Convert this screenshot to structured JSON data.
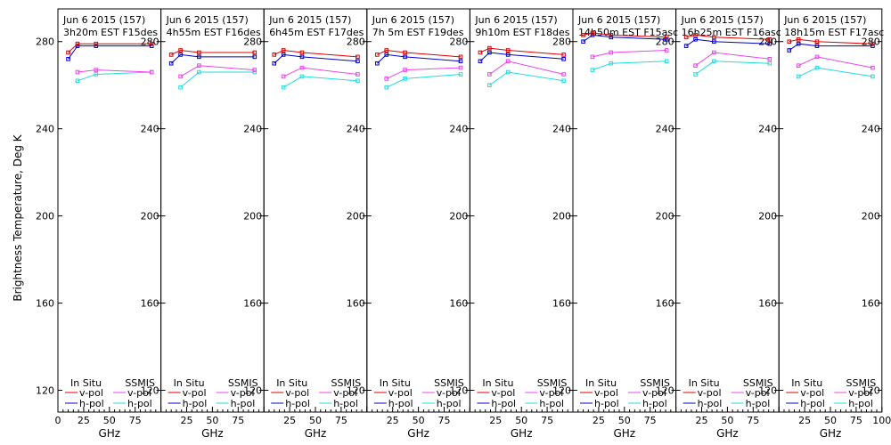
{
  "chart_data": {
    "type": "line",
    "ylabel": "Brightness Temperature, Deg K",
    "xlabel": "GHz",
    "ylim": [
      110,
      295
    ],
    "yticks": [
      120,
      160,
      200,
      240,
      280
    ],
    "x_tick_labels": [
      "0",
      "25",
      "50",
      "75",
      "100"
    ],
    "legend": {
      "insitu_title": "In Situ",
      "ssmis_title": "SSMIS",
      "vpol": "v-pol",
      "hpol": "h-pol"
    },
    "colors": {
      "insitu_v": "#dd0000",
      "insitu_h": "#0000cc",
      "ssmis_v": "#ee44ee",
      "ssmis_h": "#22dddd"
    },
    "panels": [
      {
        "date": "Jun 6 2015 (157)",
        "time": "3h20m EST F15des",
        "x_insitu": [
          10,
          19,
          37,
          91
        ],
        "insitu_v": [
          275,
          279,
          279,
          279
        ],
        "insitu_h": [
          272,
          278,
          278,
          278
        ],
        "x_ssmis": [
          19,
          37,
          91
        ],
        "ssmis_v": [
          266,
          267,
          266
        ],
        "ssmis_h": [
          262,
          265,
          266
        ]
      },
      {
        "date": "Jun 6 2015 (157)",
        "time": "4h55m EST F16des",
        "x_insitu": [
          10,
          19,
          37,
          91
        ],
        "insitu_v": [
          274,
          276,
          275,
          275
        ],
        "insitu_h": [
          270,
          274,
          273,
          273
        ],
        "x_ssmis": [
          19,
          37,
          91
        ],
        "ssmis_v": [
          264,
          269,
          267
        ],
        "ssmis_h": [
          259,
          266,
          266
        ]
      },
      {
        "date": "Jun 6 2015 (157)",
        "time": "6h45m EST F17des",
        "x_insitu": [
          10,
          19,
          37,
          91
        ],
        "insitu_v": [
          274,
          276,
          275,
          273
        ],
        "insitu_h": [
          270,
          274,
          273,
          271
        ],
        "x_ssmis": [
          19,
          37,
          91
        ],
        "ssmis_v": [
          264,
          268,
          265
        ],
        "ssmis_h": [
          259,
          264,
          262
        ]
      },
      {
        "date": "Jun 6 2015 (157)",
        "time": "7h 5m EST F19des",
        "x_insitu": [
          10,
          19,
          37,
          91
        ],
        "insitu_v": [
          274,
          276,
          275,
          273
        ],
        "insitu_h": [
          270,
          274,
          273,
          271
        ],
        "x_ssmis": [
          19,
          37,
          91
        ],
        "ssmis_v": [
          263,
          267,
          268
        ],
        "ssmis_h": [
          259,
          263,
          265
        ]
      },
      {
        "date": "Jun 6 2015 (157)",
        "time": "9h10m EST F18des",
        "x_insitu": [
          10,
          19,
          37,
          91
        ],
        "insitu_v": [
          275,
          277,
          276,
          274
        ],
        "insitu_h": [
          271,
          275,
          274,
          272
        ],
        "x_ssmis": [
          19,
          37,
          91
        ],
        "ssmis_v": [
          265,
          271,
          265
        ],
        "ssmis_h": [
          260,
          266,
          262
        ]
      },
      {
        "date": "Jun 6 2015 (157)",
        "time": "14h50m EST F15asc",
        "x_insitu": [
          10,
          19,
          37,
          91
        ],
        "insitu_v": [
          283,
          284,
          283,
          282
        ],
        "insitu_h": [
          280,
          283,
          282,
          281
        ],
        "x_ssmis": [
          19,
          37,
          91
        ],
        "ssmis_v": [
          273,
          275,
          276
        ],
        "ssmis_h": [
          267,
          270,
          271
        ]
      },
      {
        "date": "Jun 6 2015 (157)",
        "time": "16h25m EST F16asc",
        "x_insitu": [
          10,
          19,
          37,
          91
        ],
        "insitu_v": [
          282,
          283,
          282,
          281
        ],
        "insitu_h": [
          278,
          281,
          280,
          279
        ],
        "x_ssmis": [
          19,
          37,
          91
        ],
        "ssmis_v": [
          269,
          275,
          272
        ],
        "ssmis_h": [
          265,
          271,
          270
        ]
      },
      {
        "date": "Jun 6 2015 (157)",
        "time": "18h15m EST F17asc",
        "x_insitu": [
          10,
          19,
          37,
          91
        ],
        "insitu_v": [
          280,
          281,
          280,
          279
        ],
        "insitu_h": [
          276,
          279,
          278,
          278
        ],
        "x_ssmis": [
          19,
          37,
          91
        ],
        "ssmis_v": [
          269,
          273,
          268
        ],
        "ssmis_h": [
          264,
          268,
          264
        ]
      }
    ]
  }
}
